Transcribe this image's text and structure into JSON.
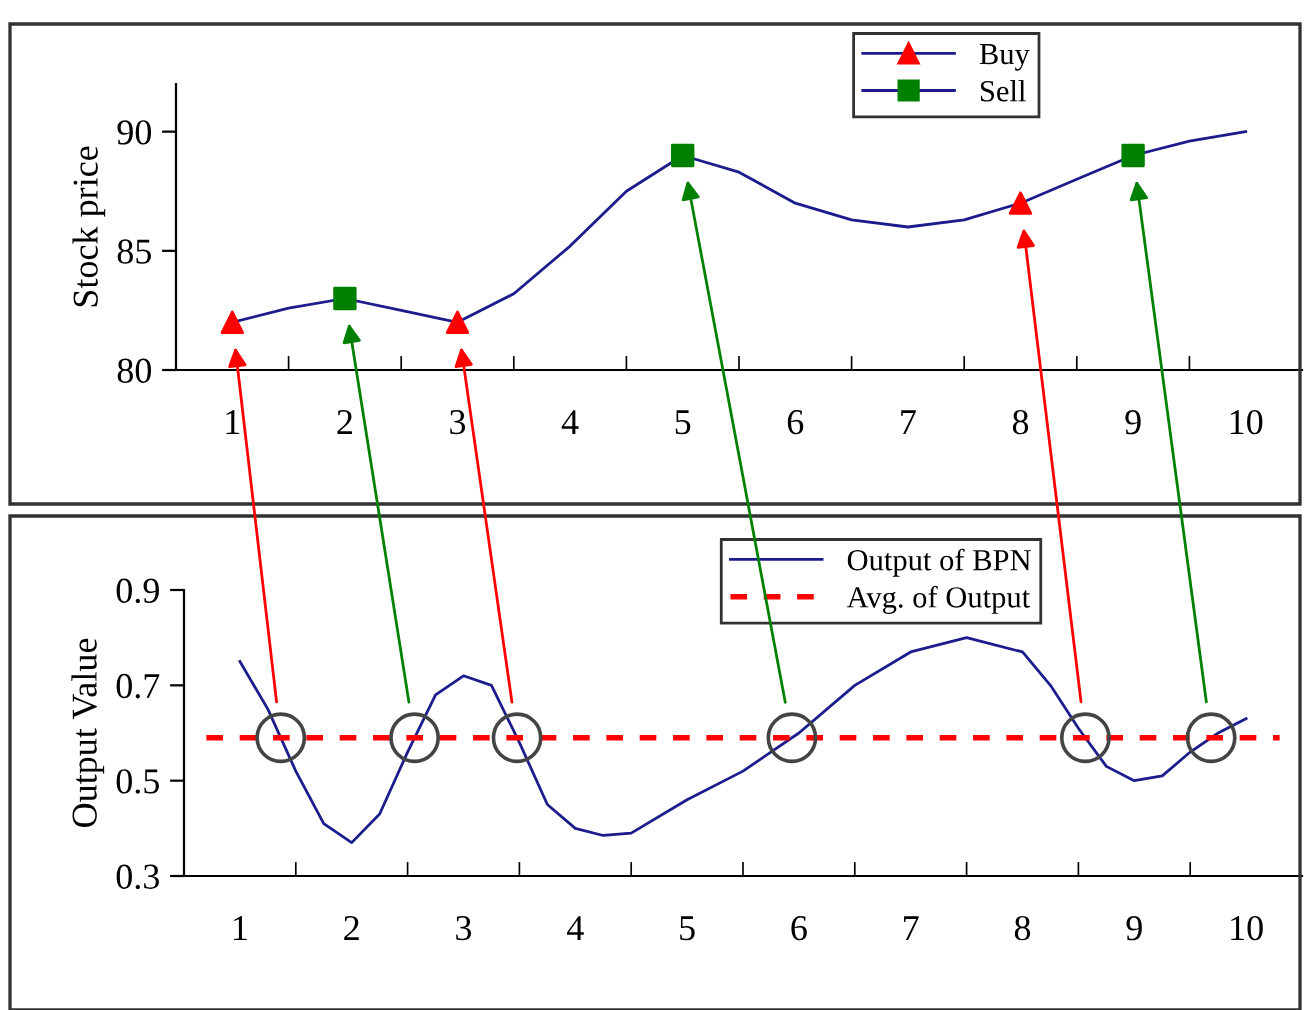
{
  "chart_data": [
    {
      "type": "line",
      "ylabel": "Stock price",
      "xlim": [
        0.5,
        10.5
      ],
      "xticks": [
        1,
        2,
        3,
        4,
        5,
        6,
        7,
        8,
        9,
        10
      ],
      "ylim": [
        80,
        92
      ],
      "yticks": [
        80,
        85,
        90
      ],
      "legend": "top right",
      "series": [
        {
          "color": "#1c1c8c",
          "x": [
            1,
            1.5,
            2,
            2.5,
            3,
            3.5,
            4,
            4.5,
            5,
            5.5,
            6,
            6.5,
            7,
            7.5,
            8,
            8.5,
            9,
            9.5,
            10
          ],
          "values": [
            82,
            82.6,
            83,
            82.5,
            82,
            83.2,
            85.2,
            87.5,
            89,
            88.3,
            87,
            86.3,
            86,
            86.3,
            87,
            88,
            89,
            89.6,
            90
          ]
        },
        {
          "name": "Buy",
          "type": "scatter",
          "marker": "triangle",
          "color": "#ff0000",
          "x": [
            1,
            3,
            8
          ],
          "values": [
            82,
            82,
            87
          ]
        },
        {
          "name": "Sell",
          "type": "scatter",
          "marker": "square",
          "color": "#008000",
          "x": [
            2,
            5,
            9
          ],
          "values": [
            83,
            89,
            89
          ]
        }
      ]
    },
    {
      "type": "line",
      "ylabel": "Output Value",
      "xlim": [
        0.5,
        10.5
      ],
      "xticks": [
        1,
        2,
        3,
        4,
        5,
        6,
        7,
        8,
        9,
        10
      ],
      "ylim": [
        0.3,
        0.9
      ],
      "yticks": [
        0.3,
        0.5,
        0.7,
        0.9
      ],
      "legend": "top right",
      "series": [
        {
          "name": "Output of BPN",
          "color": "#1c1c8c",
          "x": [
            1,
            1.25,
            1.5,
            1.75,
            2,
            2.25,
            2.5,
            2.75,
            3,
            3.25,
            3.5,
            3.75,
            4,
            4.25,
            4.5,
            5,
            5.5,
            6,
            6.5,
            7,
            7.5,
            8,
            8.25,
            8.5,
            8.75,
            9,
            9.25,
            9.5,
            9.75,
            10
          ],
          "values": [
            0.75,
            0.65,
            0.52,
            0.41,
            0.37,
            0.43,
            0.56,
            0.68,
            0.72,
            0.7,
            0.58,
            0.45,
            0.4,
            0.385,
            0.39,
            0.46,
            0.52,
            0.6,
            0.7,
            0.77,
            0.8,
            0.77,
            0.7,
            0.61,
            0.53,
            0.5,
            0.51,
            0.56,
            0.6,
            0.63
          ]
        }
      ],
      "ref_lines": [
        {
          "axis": "y",
          "value": 0.59,
          "label": "Avg. of Output",
          "color": "#ff0000",
          "line_style": "dashed"
        }
      ]
    }
  ]
}
